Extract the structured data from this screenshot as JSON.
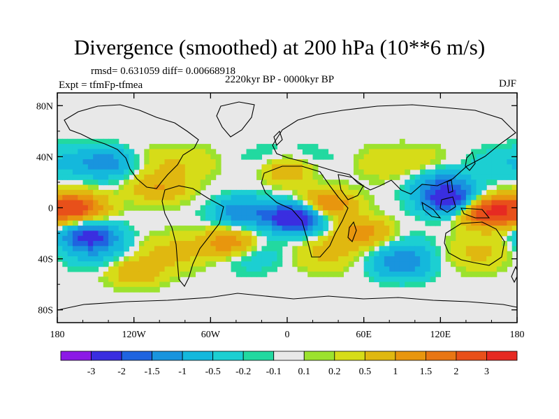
{
  "header": {
    "title": "Divergence (smoothed) at 200 hPa (10**6 m/s)",
    "stats": "rmsd= 0.631059 diff= 0.00668918",
    "experiment": "Expt = tfmFp-tfmea",
    "period": "2220kyr BP - 0000kyr BP",
    "season": "DJF"
  },
  "axes": {
    "lat_labels": [
      {
        "label": "80N",
        "lat": 80
      },
      {
        "label": "40N",
        "lat": 40
      },
      {
        "label": "0",
        "lat": 0
      },
      {
        "label": "40S",
        "lat": -40
      },
      {
        "label": "80S",
        "lat": -80
      }
    ],
    "lon_labels": [
      {
        "label": "180",
        "lon": -180
      },
      {
        "label": "120W",
        "lon": -120
      },
      {
        "label": "60W",
        "lon": -60
      },
      {
        "label": "0",
        "lon": 0
      },
      {
        "label": "60E",
        "lon": 60
      },
      {
        "label": "120E",
        "lon": 120
      },
      {
        "label": "180",
        "lon": 180
      }
    ],
    "lon_range": [
      -180,
      180
    ],
    "lat_range": [
      -90,
      90
    ]
  },
  "colorbar": {
    "colors": [
      "#8c1ae6",
      "#3a2ee0",
      "#1f64e0",
      "#1994de",
      "#14b8dc",
      "#1ccfd2",
      "#22d9a0",
      "#e8e8e8",
      "#9ce22e",
      "#d6dc18",
      "#e0b810",
      "#e8960e",
      "#e87614",
      "#e8501a",
      "#e62a22"
    ],
    "labels": [
      "-3",
      "-2",
      "-1.5",
      "-1",
      "-0.5",
      "-0.2",
      "-0.1",
      "0.1",
      "0.2",
      "0.5",
      "1",
      "1.5",
      "2",
      "3"
    ]
  },
  "chart_data": {
    "type": "heatmap",
    "title": "Divergence (smoothed) at 200 hPa (10**6 m/s)",
    "variable": "divergence difference",
    "levels": [
      -3,
      -2,
      -1.5,
      -1,
      -0.5,
      -0.2,
      -0.1,
      0.1,
      0.2,
      0.5,
      1,
      1.5,
      2,
      3
    ],
    "features": [
      {
        "lon": 7,
        "lat": -8,
        "value": -3.2
      },
      {
        "lon": 127,
        "lat": 6,
        "value": -2.4
      },
      {
        "lon": -155,
        "lat": -22,
        "value": -2.1
      },
      {
        "lon": -35,
        "lat": -3,
        "value": -1.4
      },
      {
        "lon": 30,
        "lat": 2,
        "value": 1.8
      },
      {
        "lon": 160,
        "lat": -3,
        "value": 3.2
      },
      {
        "lon": -165,
        "lat": 0,
        "value": 2.3
      },
      {
        "lon": -45,
        "lat": -28,
        "value": 1.6
      },
      {
        "lon": 60,
        "lat": -20,
        "value": 1.3
      },
      {
        "lon": 120,
        "lat": 20,
        "value": -1.2
      },
      {
        "lon": -140,
        "lat": 35,
        "value": -1.3
      },
      {
        "lon": -100,
        "lat": 15,
        "value": 1.0
      },
      {
        "lon": 0,
        "lat": 30,
        "value": 1.2
      },
      {
        "lon": 90,
        "lat": -45,
        "value": -1.0
      },
      {
        "lon": -120,
        "lat": -50,
        "value": 0.9
      }
    ]
  }
}
